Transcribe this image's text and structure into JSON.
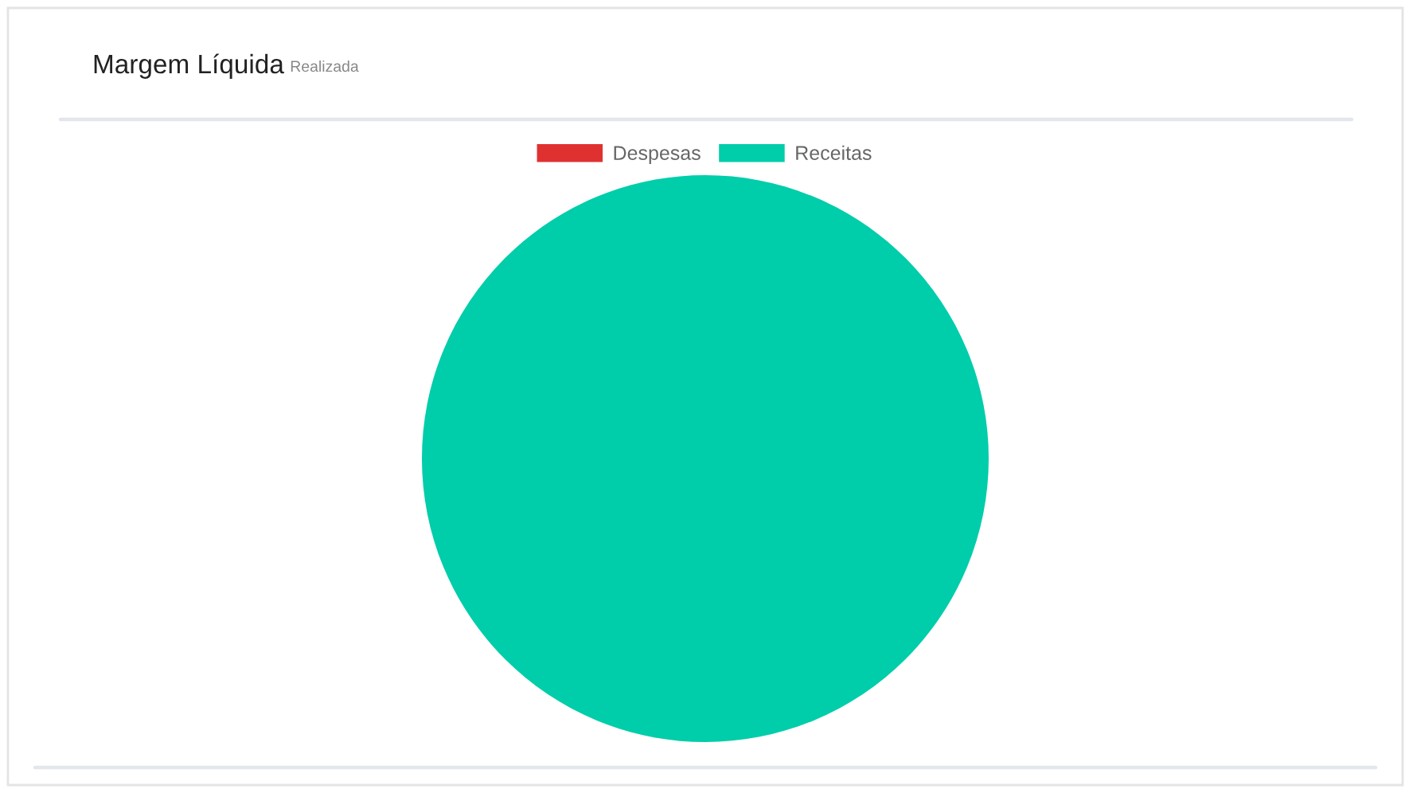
{
  "chart_data": {
    "type": "pie",
    "title": "Margem Líquida",
    "subtitle": "Realizada",
    "categories": [
      "Despesas",
      "Receitas"
    ],
    "values": [
      0,
      100
    ],
    "colors": [
      "#e03131",
      "#00cdaa"
    ],
    "legend": "top"
  }
}
